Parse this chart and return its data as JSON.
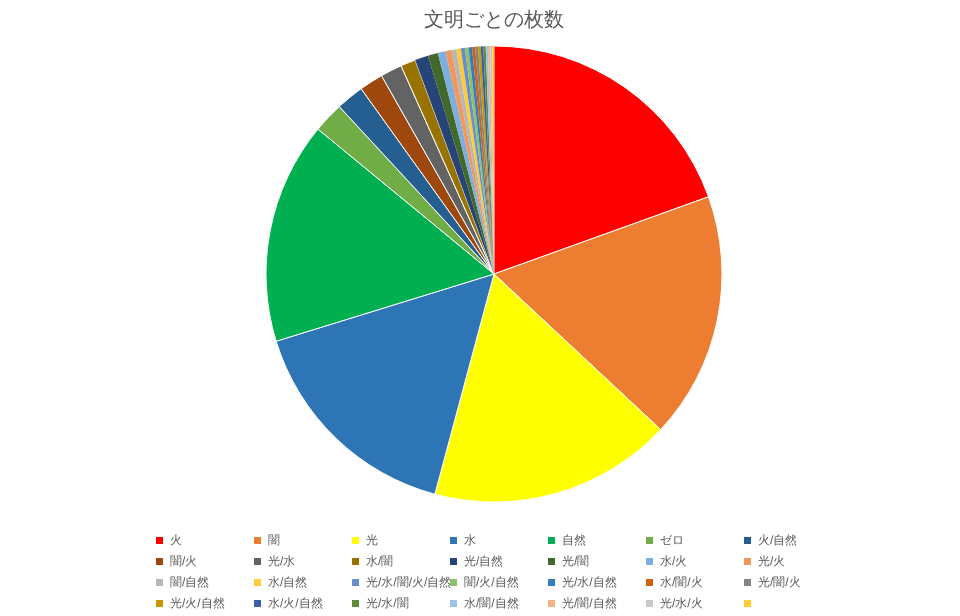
{
  "chart_data": {
    "type": "pie",
    "title": "文明ごとの枚数",
    "categories": [
      "火",
      "闇",
      "光",
      "水",
      "自然",
      "ゼロ",
      "火/自然",
      "闇/火",
      "光/水",
      "水/闇",
      "光/自然",
      "光/闇",
      "水/火",
      "光/火",
      "闇/自然",
      "水/自然",
      "光/水/闇/火/自然",
      "闇/火/自然",
      "光/水/自然",
      "水/闇/火",
      "光/闇/火",
      "光/火/自然",
      "水/火/自然",
      "光/水/闇",
      "水/闇/自然",
      "光/闇/自然",
      "光/水/火",
      null
    ],
    "values": [
      19.5,
      17.45,
      17.22,
      16.06,
      15.72,
      2.17,
      1.97,
      1.69,
      1.53,
      1.06,
      0.94,
      0.72,
      0.55,
      0.42,
      0.35,
      0.31,
      0.29,
      0.26,
      0.24,
      0.22,
      0.2,
      0.19,
      0.18,
      0.17,
      0.16,
      0.15,
      0.14,
      0.13
    ],
    "colors": [
      "#ff0000",
      "#ed7d31",
      "#ffff00",
      "#2e75b6",
      "#00b050",
      "#70ad47",
      "#255e91",
      "#9e480e",
      "#636363",
      "#997300",
      "#264478",
      "#43682b",
      "#7cafdd",
      "#f1975a",
      "#b7b7b7",
      "#ffcd33",
      "#698ed0",
      "#8cc168",
      "#327dc2",
      "#d26012",
      "#848484",
      "#c89800",
      "#3a5dae",
      "#5f8a3a",
      "#9dc3e6",
      "#f4b183",
      "#c9c9c9",
      "#ffcc33"
    ],
    "legend": "bottom"
  }
}
